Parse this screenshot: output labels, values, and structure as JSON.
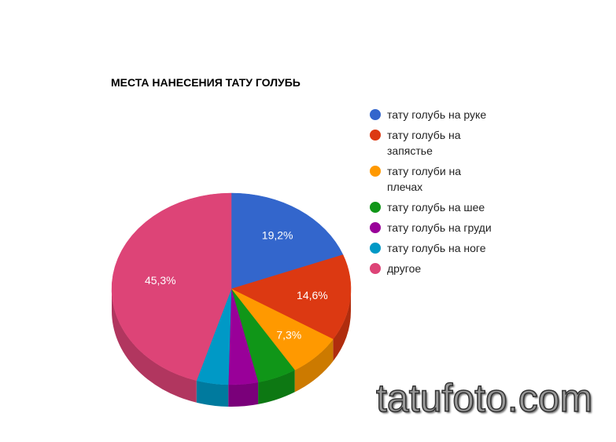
{
  "chart_data": {
    "type": "pie",
    "title": "МЕСТА НАНЕСЕНИЯ ТАТУ ГОЛУБЬ",
    "three_d": true,
    "legend_position": "right",
    "slices": [
      {
        "label": "тату голубь на руке",
        "value": 19.2,
        "data_label": "19,2%",
        "color": "#3366cc",
        "side": "#2a52a3"
      },
      {
        "label": "тату голубь на запястье",
        "value": 14.6,
        "data_label": "14,6%",
        "color": "#dc3912",
        "side": "#b02d0e"
      },
      {
        "label": "тату голуби на плечах",
        "value": 7.3,
        "data_label": "7,3%",
        "color": "#ff9900",
        "side": "#cc7a00"
      },
      {
        "label": "тату голубь на шее",
        "value": 5.3,
        "data_label": "",
        "color": "#109618",
        "side": "#0d7813"
      },
      {
        "label": "тату голубь на груди",
        "value": 4.0,
        "data_label": "",
        "color": "#990099",
        "side": "#7a007a"
      },
      {
        "label": "тату голубь на ноге",
        "value": 4.3,
        "data_label": "",
        "color": "#0099c6",
        "side": "#007a9e"
      },
      {
        "label": "другое",
        "value": 45.3,
        "data_label": "45,3%",
        "color": "#dd4477",
        "side": "#b1365f"
      }
    ]
  },
  "watermark": "tatufoto.com"
}
